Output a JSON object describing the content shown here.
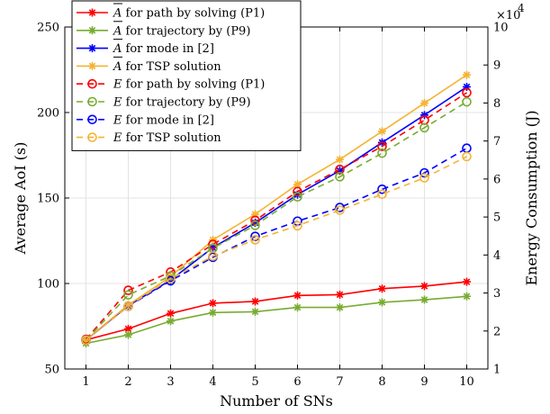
{
  "chart_data": {
    "type": "line",
    "xlabel": "Number of SNs",
    "ylabel_left": "Average AoI (s)",
    "ylabel_right": "Energy Consumption (J)",
    "right_axis_multiplier": "×10",
    "right_axis_exponent": "4",
    "x": [
      1,
      2,
      3,
      4,
      5,
      6,
      7,
      8,
      9,
      10
    ],
    "xlim": [
      0.5,
      10.5
    ],
    "ylim_left": [
      50,
      250
    ],
    "ylim_right": [
      1,
      10
    ],
    "xticks": [
      "1",
      "2",
      "3",
      "4",
      "5",
      "6",
      "7",
      "8",
      "9",
      "10"
    ],
    "yticks_left": [
      "50",
      "100",
      "150",
      "200",
      "250"
    ],
    "yticks_right": [
      "1",
      "2",
      "3",
      "4",
      "5",
      "6",
      "7",
      "8",
      "9",
      "10"
    ],
    "grid": true,
    "legend_position": "top-left",
    "series": [
      {
        "name_symbol": "A",
        "name_rest": " for path by solving (P1)",
        "axis": "left",
        "color": "#ff0000",
        "dash": "solid",
        "marker": "asterisk",
        "values": [
          67,
          73.5,
          82.5,
          88.5,
          89.5,
          93,
          93.5,
          97,
          98.5,
          101
        ]
      },
      {
        "name_symbol": "A",
        "name_rest": " for trajectory by (P9)",
        "axis": "left",
        "color": "#77ac30",
        "dash": "solid",
        "marker": "asterisk",
        "values": [
          65,
          70,
          78,
          83,
          83.5,
          86,
          86,
          89,
          90.5,
          92.5
        ]
      },
      {
        "name_symbol": "A",
        "name_rest": " for mode in [2]",
        "axis": "left",
        "color": "#0000ff",
        "dash": "solid",
        "marker": "asterisk",
        "values": [
          67,
          87,
          102,
          121,
          135.5,
          152,
          166,
          182.5,
          198.5,
          215
        ]
      },
      {
        "name_symbol": "A",
        "name_rest": " for TSP solution",
        "axis": "left",
        "color": "#f5b333",
        "dash": "solid",
        "marker": "asterisk",
        "values": [
          67,
          87.5,
          104,
          125.5,
          140.5,
          158,
          172.5,
          189,
          205.5,
          222
        ]
      },
      {
        "name_symbol": "E",
        "name_rest": " for path by solving (P1)",
        "axis": "right",
        "color": "#ff0000",
        "dash": "dashed",
        "marker": "circle",
        "values": [
          1.78,
          3.07,
          3.55,
          4.28,
          4.91,
          5.67,
          6.25,
          6.86,
          7.55,
          8.27
        ]
      },
      {
        "name_symbol": "E",
        "name_rest": " for trajectory by (P9)",
        "axis": "right",
        "color": "#77ac30",
        "dash": "dashed",
        "marker": "circle",
        "values": [
          1.76,
          2.95,
          3.45,
          4.18,
          4.78,
          5.53,
          6.06,
          6.68,
          7.35,
          8.03
        ]
      },
      {
        "name_symbol": "E",
        "name_rest": " for mode in [2]",
        "axis": "right",
        "color": "#0000ff",
        "dash": "dashed",
        "marker": "circle",
        "values": [
          1.76,
          2.65,
          3.32,
          3.94,
          4.49,
          4.89,
          5.25,
          5.73,
          6.16,
          6.81
        ]
      },
      {
        "name_symbol": "E",
        "name_rest": " for TSP solution",
        "axis": "right",
        "color": "#f5b333",
        "dash": "dashed",
        "marker": "circle",
        "values": [
          1.76,
          2.65,
          3.38,
          3.97,
          4.4,
          4.77,
          5.18,
          5.6,
          6.03,
          6.59
        ]
      }
    ]
  }
}
